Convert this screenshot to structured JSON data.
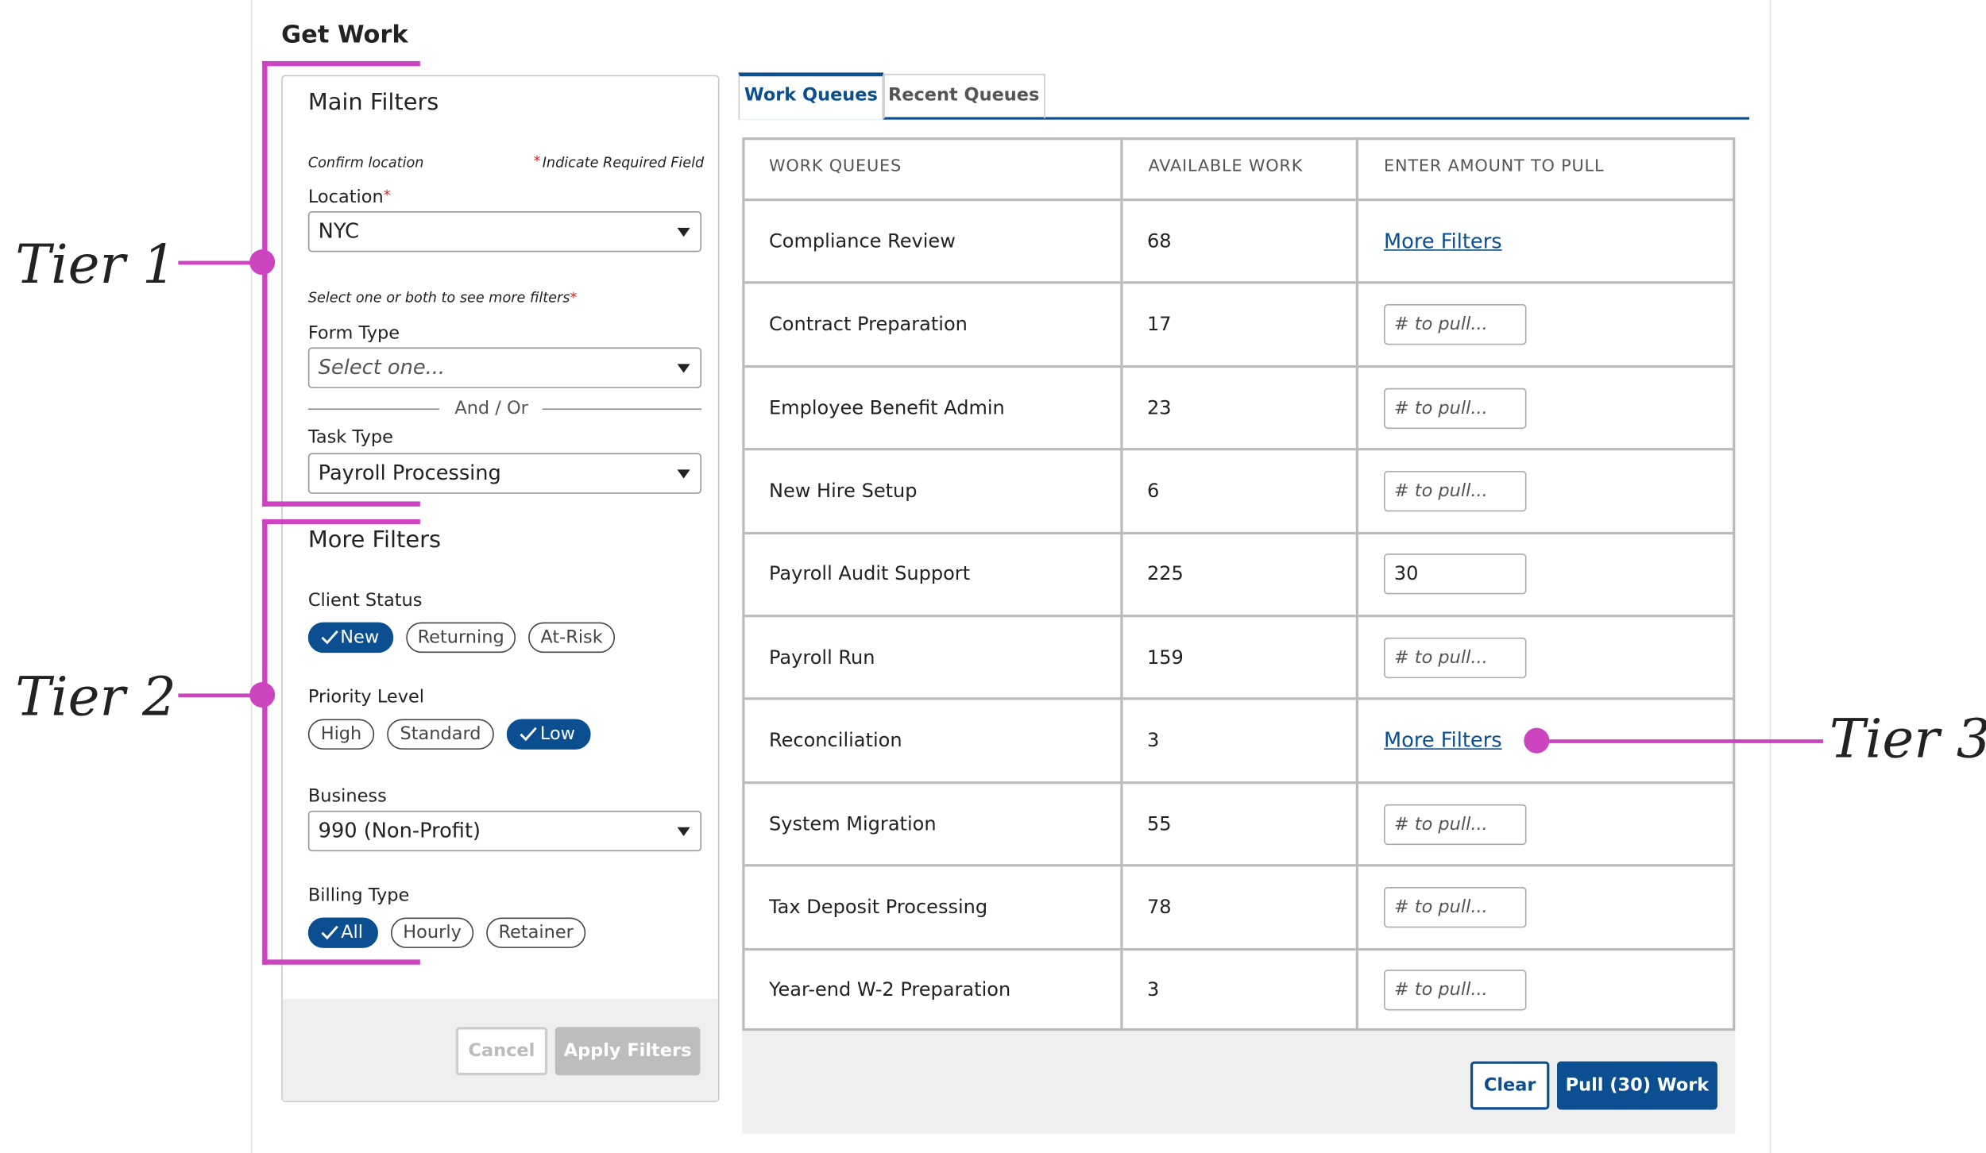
{
  "header": {
    "title": "Get Work"
  },
  "main_filters": {
    "title": "Main Filters",
    "confirm_location": "Confirm location",
    "required_mark": "*",
    "required_note": "Indicate Required Field",
    "location": {
      "label": "Location",
      "value": "NYC"
    },
    "select_note": "Select one or both to see more filters",
    "form_type": {
      "label": "Form Type",
      "placeholder": "Select one..."
    },
    "and_or": "And / Or",
    "task_type": {
      "label": "Task Type",
      "value": "Payroll Processing"
    }
  },
  "more_filters": {
    "title": "More Filters",
    "client_status": {
      "label": "Client Status",
      "options": [
        "New",
        "Returning",
        "At-Risk"
      ],
      "selected": "New"
    },
    "priority_level": {
      "label": "Priority Level",
      "options": [
        "High",
        "Standard",
        "Low"
      ],
      "selected": "Low"
    },
    "business": {
      "label": "Business",
      "value": "990 (Non-Profit)"
    },
    "billing_type": {
      "label": "Billing Type",
      "options": [
        "All",
        "Hourly",
        "Retainer"
      ],
      "selected": "All"
    },
    "buttons": [
      "Cancel",
      "Apply Filters"
    ]
  },
  "tabs": [
    "Work Queues",
    "Recent Queues"
  ],
  "table": {
    "headers": [
      "WORK QUEUES",
      "AVAILABLE WORK",
      "ENTER  AMOUNT TO PULL"
    ],
    "rows": [
      {
        "queue": "Compliance Review",
        "available": 68,
        "action": "More Filters"
      },
      {
        "queue": "Contract Preparation",
        "available": 17,
        "placeholder": "# to pull..."
      },
      {
        "queue": "Employee Benefit Admin",
        "available": 23,
        "placeholder": "# to pull..."
      },
      {
        "queue": "New Hire Setup",
        "available": 6,
        "placeholder": "# to pull..."
      },
      {
        "queue": "Payroll Audit Support",
        "available": 225,
        "input": "30"
      },
      {
        "queue": "Payroll Run",
        "available": 159,
        "placeholder": "# to pull..."
      },
      {
        "queue": "Reconciliation",
        "available": 3,
        "action": "More Filters"
      },
      {
        "queue": "System Migration",
        "available": 55,
        "placeholder": "# to pull..."
      },
      {
        "queue": "Tax Deposit Processing",
        "available": 78,
        "placeholder": "# to pull..."
      },
      {
        "queue": "Year-end W-2 Preparation",
        "available": 3,
        "placeholder": "# to pull..."
      }
    ]
  },
  "footer_buttons": [
    "Clear",
    "Pull (30) Work"
  ],
  "annotations": [
    "Tier 1",
    "Tier 2",
    "Tier 3"
  ]
}
